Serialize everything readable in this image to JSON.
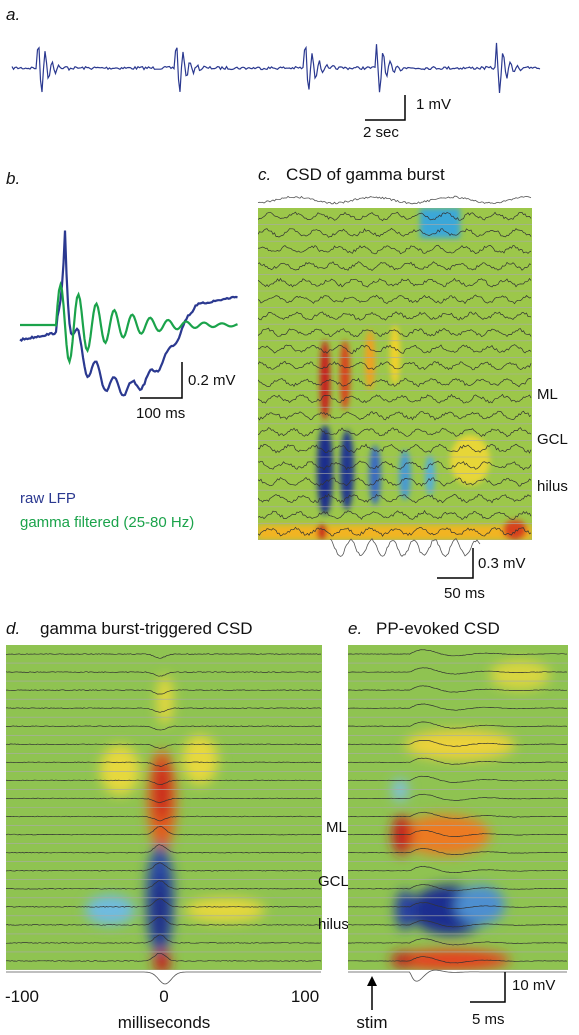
{
  "panels": {
    "a": {
      "label": "a.",
      "scale_y": "1 mV",
      "scale_x": "2 sec"
    },
    "b": {
      "label": "b.",
      "scale_y": "0.2 mV",
      "scale_x": "100 ms",
      "legend": [
        "raw LFP",
        "gamma filtered (25-80 Hz)"
      ]
    },
    "c": {
      "label": "c.",
      "title": "CSD of gamma burst",
      "layers": [
        "ML",
        "GCL",
        "hilus"
      ],
      "scale_y": "0.3 mV",
      "scale_x": "50 ms"
    },
    "d": {
      "label": "d.",
      "title": "gamma burst-triggered CSD",
      "layers": [
        "ML",
        "GCL",
        "hilus"
      ],
      "ticks": [
        "-100",
        "0",
        "100"
      ],
      "xlabel": "milliseconds"
    },
    "e": {
      "label": "e.",
      "title": "PP-evoked CSD",
      "scale_y": "10 mV",
      "scale_x": "5 ms",
      "annotation": "stim"
    }
  }
}
